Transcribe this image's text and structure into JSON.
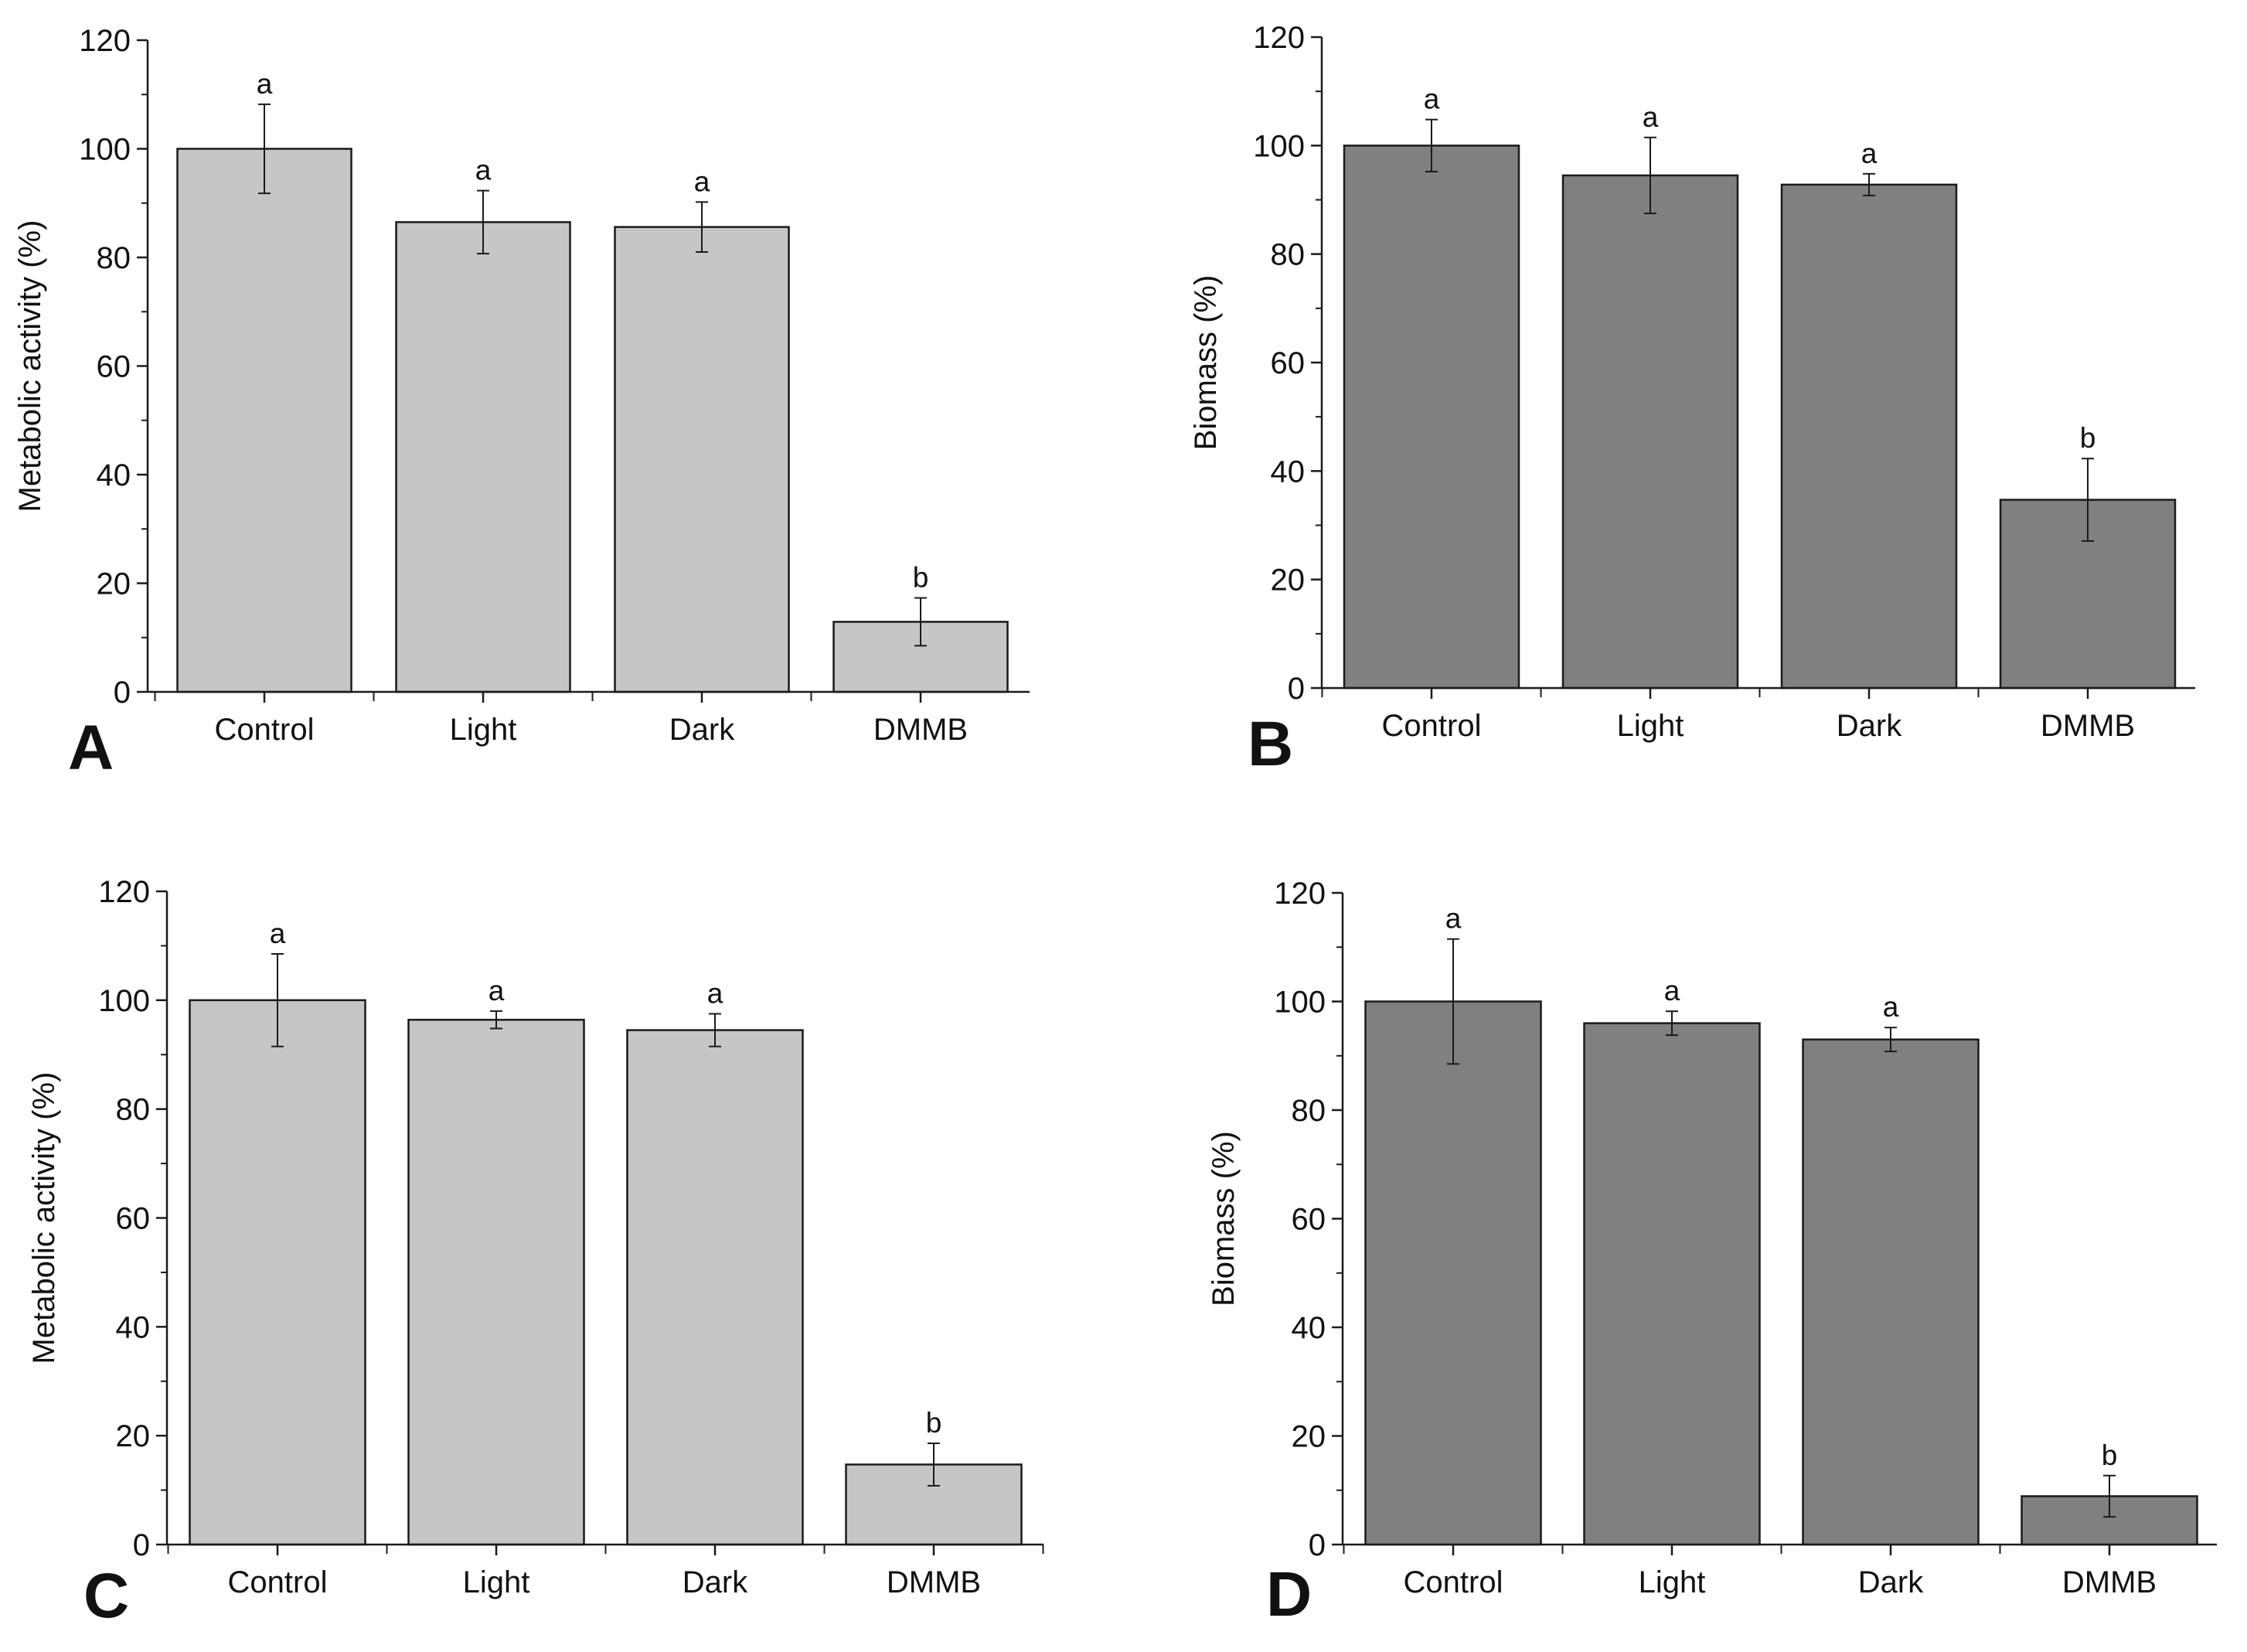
{
  "figure": {
    "panels": [
      "A",
      "B",
      "C",
      "D"
    ]
  },
  "chart_data": [
    {
      "panel": "A",
      "type": "bar",
      "ylabel": "Metabolic activity (%)",
      "xlabel": "",
      "categories": [
        "Control",
        "Light",
        "Dark",
        "DMMB"
      ],
      "values": [
        100,
        86.5,
        85.6,
        12.9
      ],
      "errors": [
        8.2,
        5.8,
        4.6,
        4.4
      ],
      "significance": [
        "a",
        "a",
        "a",
        "b"
      ],
      "ylim": [
        0,
        120
      ],
      "yticks": [
        0,
        20,
        40,
        60,
        80,
        100,
        120
      ],
      "bar_color": "#c6c6c6",
      "grid": false
    },
    {
      "panel": "B",
      "type": "bar",
      "ylabel": "Biomass (%)",
      "xlabel": "",
      "categories": [
        "Control",
        "Light",
        "Dark",
        "DMMB"
      ],
      "values": [
        100,
        94.5,
        92.8,
        34.7
      ],
      "errors": [
        4.8,
        7.0,
        2.0,
        7.6
      ],
      "significance": [
        "a",
        "a",
        "a",
        "b"
      ],
      "ylim": [
        0,
        120
      ],
      "yticks": [
        0,
        20,
        40,
        60,
        80,
        100,
        120
      ],
      "bar_color": "#808080",
      "grid": false
    },
    {
      "panel": "C",
      "type": "bar",
      "ylabel": "Metabolic activity (%)",
      "xlabel": "",
      "categories": [
        "Control",
        "Light",
        "Dark",
        "DMMB"
      ],
      "values": [
        100,
        96.4,
        94.5,
        14.7
      ],
      "errors": [
        8.5,
        1.6,
        3.0,
        3.9
      ],
      "significance": [
        "a",
        "a",
        "a",
        "b"
      ],
      "ylim": [
        0,
        120
      ],
      "yticks": [
        0,
        20,
        40,
        60,
        80,
        100,
        120
      ],
      "bar_color": "#c6c6c6",
      "grid": false
    },
    {
      "panel": "D",
      "type": "bar",
      "ylabel": "Biomass (%)",
      "xlabel": "",
      "categories": [
        "Control",
        "Light",
        "Dark",
        "DMMB"
      ],
      "values": [
        100,
        96.0,
        93.0,
        8.9
      ],
      "errors": [
        11.5,
        2.2,
        2.2,
        3.8
      ],
      "significance": [
        "a",
        "a",
        "a",
        "b"
      ],
      "ylim": [
        0,
        120
      ],
      "yticks": [
        0,
        20,
        40,
        60,
        80,
        100,
        120
      ],
      "bar_color": "#808080",
      "grid": false
    }
  ]
}
